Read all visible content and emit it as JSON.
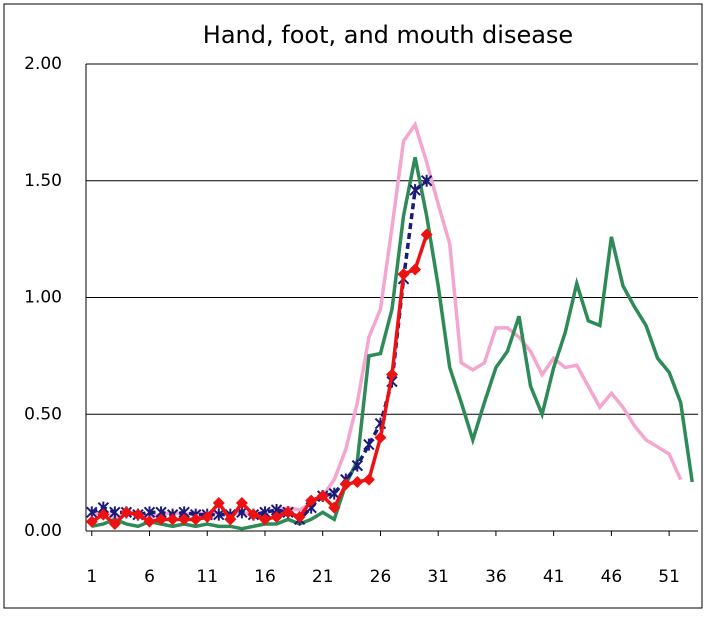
{
  "chart_data": {
    "type": "line",
    "title": "Hand, foot, and mouth disease",
    "x": [
      1,
      2,
      3,
      4,
      5,
      6,
      7,
      8,
      9,
      10,
      11,
      12,
      13,
      14,
      15,
      16,
      17,
      18,
      19,
      20,
      21,
      22,
      23,
      24,
      25,
      26,
      27,
      28,
      29,
      30,
      31,
      32,
      33,
      34,
      35,
      36,
      37,
      38,
      39,
      40,
      41,
      42,
      43,
      44,
      45,
      46,
      47,
      48,
      49,
      50,
      51,
      52,
      53
    ],
    "xlim": [
      0.5,
      53.5
    ],
    "xticks": [
      1,
      6,
      11,
      16,
      21,
      26,
      31,
      36,
      41,
      46,
      51
    ],
    "ylim": [
      0,
      2
    ],
    "yticks": [
      {
        "value": 0,
        "label": "0.00"
      },
      {
        "value": 0.5,
        "label": "0.50"
      },
      {
        "value": 1,
        "label": "1.00"
      },
      {
        "value": 1.5,
        "label": "1.50"
      },
      {
        "value": 2,
        "label": "2.00"
      }
    ],
    "grid": true,
    "series": [
      {
        "color": "#f4a6cf",
        "marker": "none",
        "dash": false,
        "values": [
          0.07,
          0.08,
          0.06,
          0.07,
          0.08,
          0.06,
          0.07,
          0.08,
          0.07,
          0.08,
          0.07,
          0.08,
          0.07,
          0.08,
          0.07,
          0.08,
          0.09,
          0.1,
          0.09,
          0.12,
          0.15,
          0.22,
          0.35,
          0.55,
          0.83,
          0.95,
          1.3,
          1.67,
          1.74,
          1.58,
          1.4,
          1.23,
          0.72,
          0.69,
          0.72,
          0.87,
          0.87,
          0.83,
          0.77,
          0.67,
          0.74,
          0.7,
          0.71,
          0.62,
          0.53,
          0.59,
          0.53,
          0.45,
          0.39,
          0.36,
          0.33,
          0.22,
          null
        ]
      },
      {
        "color": "#2e8b57",
        "marker": "none",
        "dash": false,
        "values": [
          0.02,
          0.03,
          0.05,
          0.03,
          0.02,
          0.04,
          0.03,
          0.02,
          0.03,
          0.02,
          0.03,
          0.02,
          0.02,
          0.01,
          0.02,
          0.03,
          0.03,
          0.05,
          0.03,
          0.05,
          0.08,
          0.05,
          0.2,
          0.3,
          0.75,
          0.76,
          0.95,
          1.35,
          1.6,
          1.35,
          1.05,
          0.7,
          0.55,
          0.39,
          0.55,
          0.7,
          0.77,
          0.92,
          0.62,
          0.5,
          0.7,
          0.85,
          1.06,
          0.9,
          0.88,
          1.26,
          1.05,
          0.96,
          0.88,
          0.74,
          0.68,
          0.55,
          0.21
        ]
      },
      {
        "color": "#1a1a7a",
        "marker": "asterisk",
        "dash": true,
        "values": [
          0.08,
          0.1,
          0.08,
          0.08,
          0.07,
          0.08,
          0.08,
          0.07,
          0.08,
          0.07,
          0.07,
          0.07,
          0.07,
          0.08,
          0.07,
          0.08,
          0.09,
          0.08,
          0.05,
          0.1,
          0.15,
          0.16,
          0.22,
          0.28,
          0.37,
          0.46,
          0.64,
          1.08,
          1.46,
          1.5,
          null,
          null,
          null,
          null,
          null,
          null,
          null,
          null,
          null,
          null,
          null,
          null,
          null,
          null,
          null,
          null,
          null,
          null,
          null,
          null,
          null,
          null,
          null
        ]
      },
      {
        "color": "#ee1111",
        "marker": "diamond",
        "dash": false,
        "values": [
          0.04,
          0.07,
          0.03,
          0.08,
          0.07,
          0.04,
          0.05,
          0.05,
          0.05,
          0.05,
          0.06,
          0.12,
          0.05,
          0.12,
          0.07,
          0.05,
          0.06,
          0.08,
          0.06,
          0.13,
          0.15,
          0.1,
          0.2,
          0.21,
          0.22,
          0.4,
          0.67,
          1.1,
          1.12,
          1.27,
          null,
          null,
          null,
          null,
          null,
          null,
          null,
          null,
          null,
          null,
          null,
          null,
          null,
          null,
          null,
          null,
          null,
          null,
          null,
          null,
          null,
          null,
          null
        ]
      }
    ]
  }
}
